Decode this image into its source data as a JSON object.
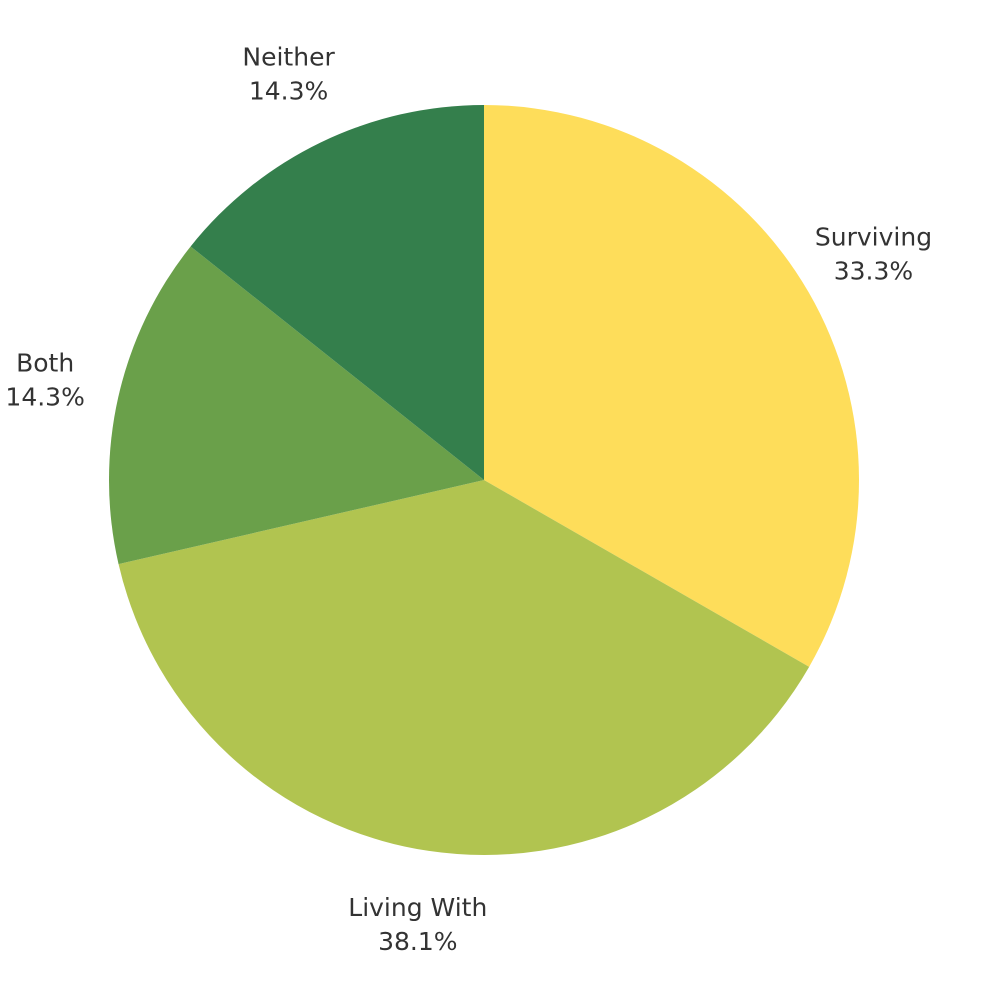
{
  "chart_data": {
    "type": "pie",
    "categories": [
      "Surviving",
      "Living With",
      "Both",
      "Neither"
    ],
    "values": [
      33.3,
      38.1,
      14.3,
      14.3
    ],
    "value_labels": [
      "33.3%",
      "38.1%",
      "14.3%",
      "14.3%"
    ],
    "colors": [
      "#fedd5a",
      "#b1c450",
      "#6aa04a",
      "#347f4c"
    ]
  }
}
